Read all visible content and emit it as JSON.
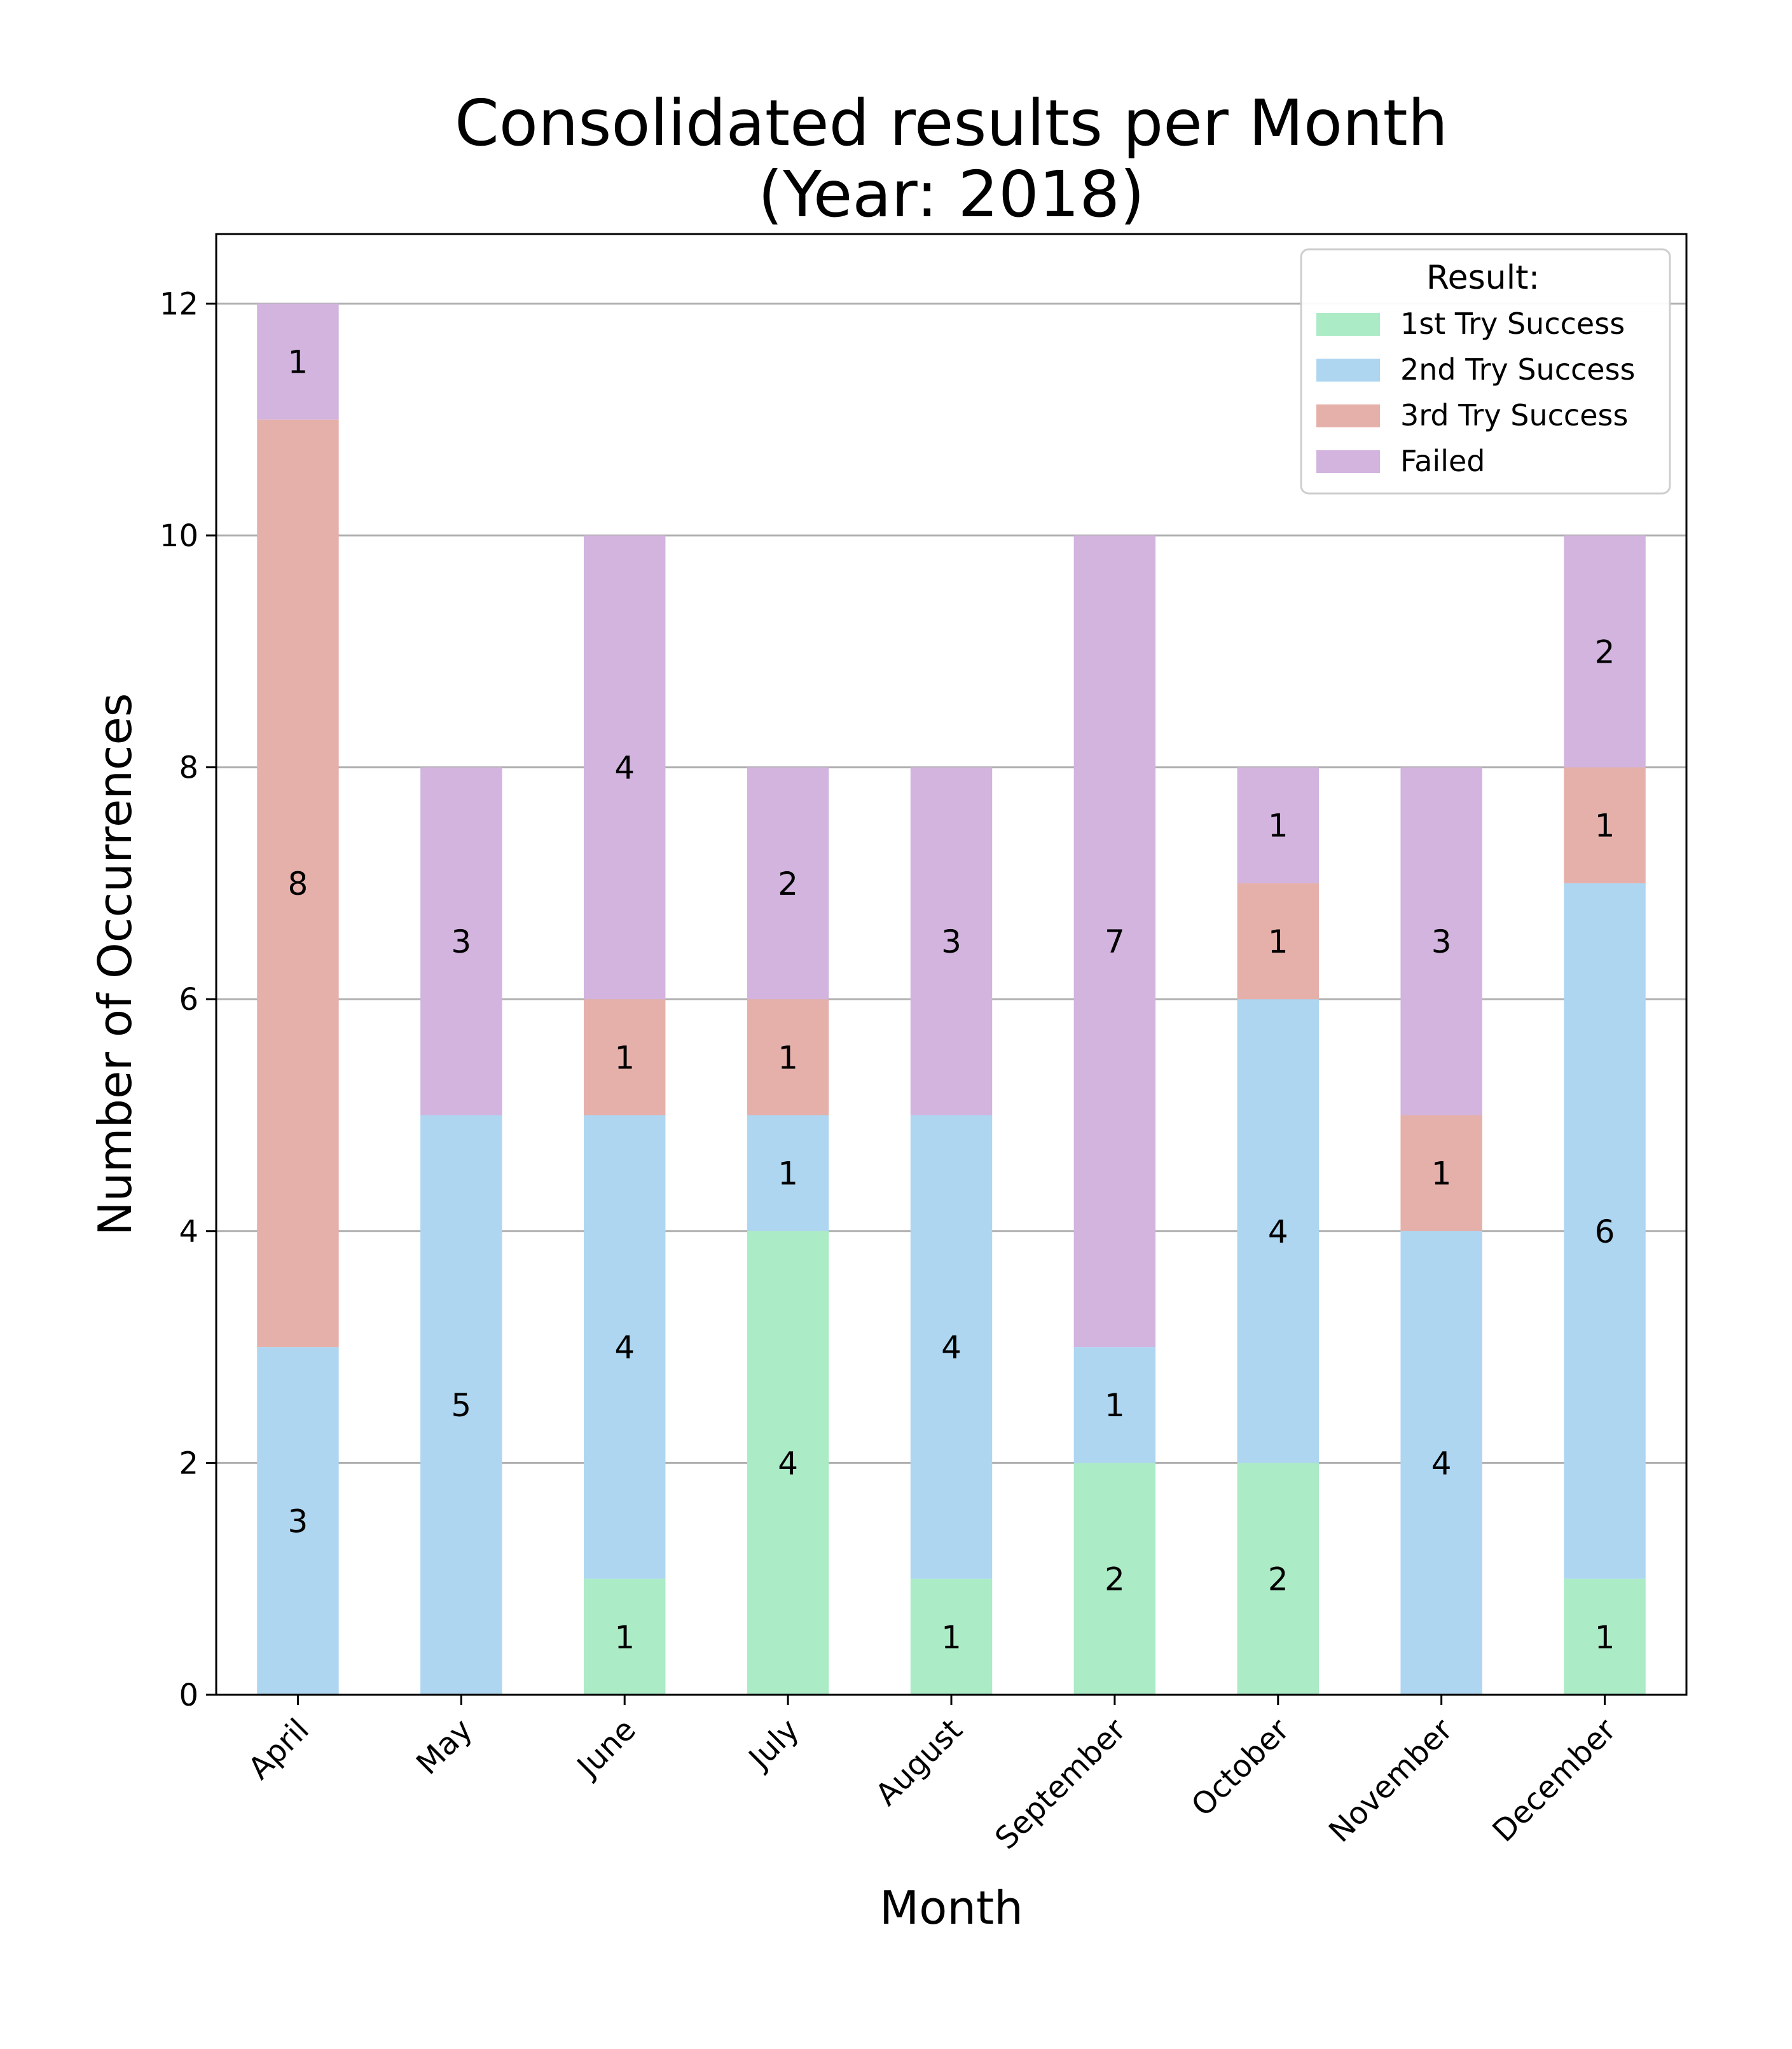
{
  "chart_data": {
    "type": "bar",
    "stacked": true,
    "title": "Consolidated results per Month\n(Year: 2018)",
    "xlabel": "Month",
    "ylabel": "Number of Occurrences",
    "categories": [
      "April",
      "May",
      "June",
      "July",
      "August",
      "September",
      "October",
      "November",
      "December"
    ],
    "ylim": [
      0,
      12.6
    ],
    "yticks": [
      0,
      2,
      4,
      6,
      8,
      10,
      12
    ],
    "grid": "horizontal",
    "legend": {
      "title": "Result:",
      "placement": "top-right"
    },
    "series": [
      {
        "name": "1st Try Success",
        "color": "#abebc6",
        "values": [
          0,
          0,
          1,
          4,
          1,
          2,
          2,
          0,
          1
        ]
      },
      {
        "name": "2nd Try Success",
        "color": "#aed6f1",
        "values": [
          3,
          5,
          4,
          1,
          4,
          1,
          4,
          4,
          6
        ]
      },
      {
        "name": "3rd Try Success",
        "color": "#e6b0aa",
        "values": [
          8,
          0,
          1,
          1,
          0,
          0,
          1,
          1,
          1
        ]
      },
      {
        "name": "Failed",
        "color": "#d2b4de",
        "values": [
          1,
          3,
          4,
          2,
          3,
          7,
          1,
          3,
          2
        ]
      }
    ]
  }
}
